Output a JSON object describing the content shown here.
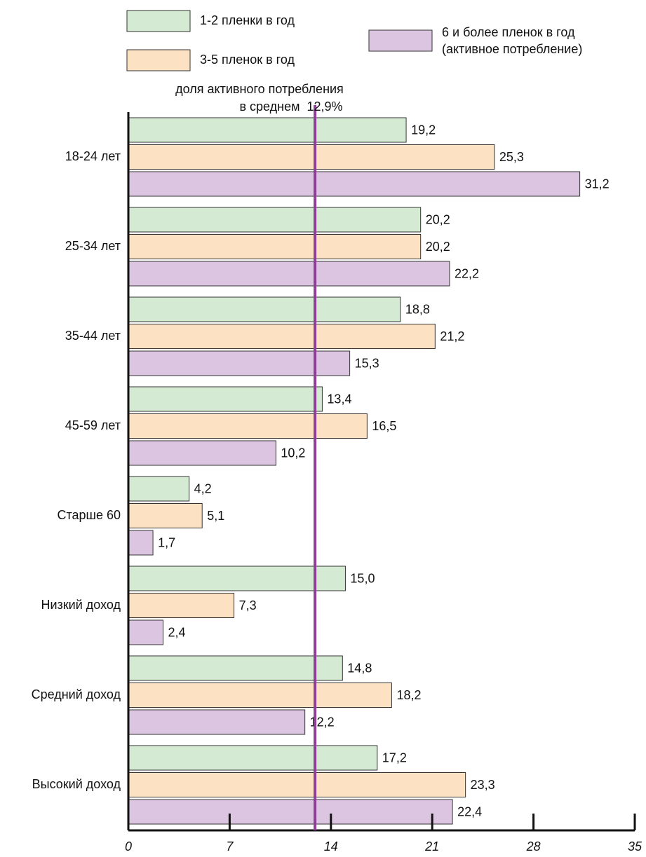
{
  "chart_data": {
    "type": "hbar",
    "categories": [
      "18-24 лет",
      "25-34 лет",
      "35-44 лет",
      "45-59 лет",
      "Старше 60",
      "Низкий доход",
      "Средний доход",
      "Высокий доход"
    ],
    "series": [
      {
        "name": "1-2 пленки в год",
        "color": "#d5ead3",
        "values": [
          19.2,
          20.2,
          18.8,
          13.4,
          4.2,
          15.0,
          14.8,
          17.2
        ],
        "value_labels": [
          "19,2",
          "20,2",
          "18,8",
          "13,4",
          "4,2",
          "15,0",
          "14,8",
          "17,2"
        ]
      },
      {
        "name": "3-5 пленок в год",
        "color": "#fde1c3",
        "values": [
          25.3,
          20.2,
          21.2,
          16.5,
          5.1,
          7.3,
          18.2,
          23.3
        ],
        "value_labels": [
          "25,3",
          "20,2",
          "21,2",
          "16,5",
          "5,1",
          "7,3",
          "18,2",
          "23,3"
        ]
      },
      {
        "name": "6 и более пленок в год\n(активное потребление)",
        "color": "#dcc5e0",
        "values": [
          31.2,
          22.2,
          15.3,
          10.2,
          1.7,
          2.4,
          12.2,
          22.4
        ],
        "value_labels": [
          "31,2",
          "22,2",
          "15,3",
          "10,2",
          "1,7",
          "2,4",
          "12,2",
          "22,4"
        ]
      }
    ],
    "xlim": [
      0,
      35
    ],
    "xticks": [
      0,
      7,
      14,
      21,
      28,
      35
    ],
    "reference_line": {
      "value": 12.9,
      "color": "#8e3f96",
      "label": [
        "доля активного потребления",
        "в среднем  12,9%"
      ]
    }
  }
}
